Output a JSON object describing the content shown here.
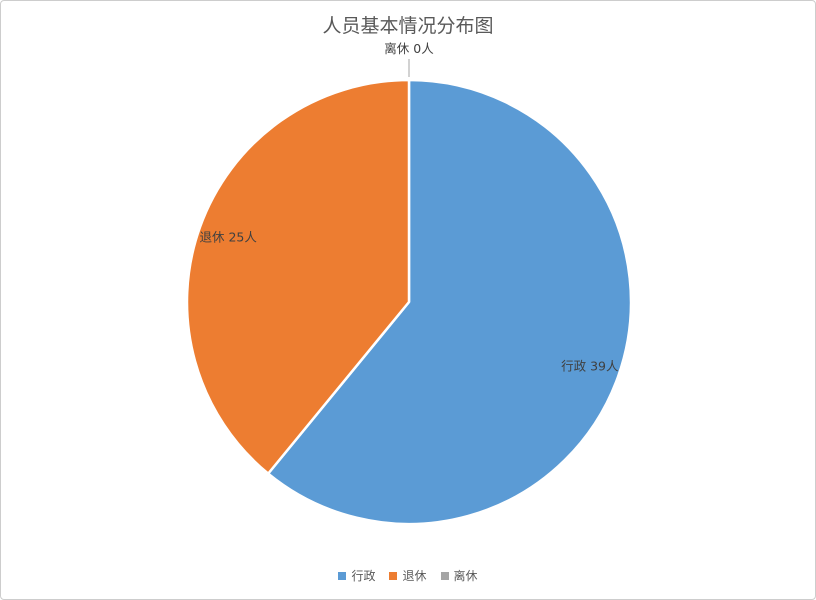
{
  "title": "人员基本情况分布图",
  "chart_data": {
    "type": "pie",
    "title": "人员基本情况分布图",
    "categories": [
      "行政",
      "退休",
      "离休"
    ],
    "values": [
      39,
      25,
      0
    ],
    "unit": "人",
    "colors": [
      "#5B9BD5",
      "#ED7D31",
      "#A5A5A5"
    ],
    "data_labels": [
      "行政 39人",
      "退休 25人",
      "离休 0人"
    ],
    "legend_entries": [
      "行政",
      "退休",
      "离休"
    ],
    "legend_position": "bottom",
    "start_angle_deg": 0,
    "direction": "clockwise",
    "total": 64
  },
  "style_colors": {
    "title_text": "#595959",
    "label_text": "#404040",
    "legend_text": "#595959",
    "leader_line": "#a6a6a6",
    "slice_separator": "#ffffff",
    "frame_border": "#cdcdcd",
    "background": "#ffffff"
  }
}
